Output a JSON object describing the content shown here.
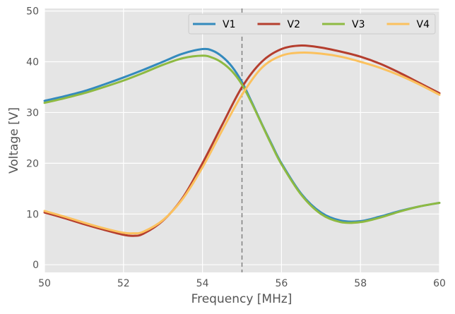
{
  "chart_data": {
    "type": "line",
    "xlabel": "Frequency [MHz]",
    "ylabel": "Voltage [V]",
    "xlim": [
      50,
      60
    ],
    "ylim": [
      -1.5,
      50.5
    ],
    "xticks": [
      50,
      52,
      54,
      56,
      58,
      60
    ],
    "yticks": [
      0,
      10,
      20,
      30,
      40,
      50
    ],
    "grid": true,
    "legend_position": "top-right",
    "vline": {
      "x": 55.0,
      "style": "dashed",
      "color": "#808080"
    },
    "series": [
      {
        "name": "V1",
        "color": "#348ABD",
        "x": [
          50,
          50.5,
          51,
          51.5,
          52,
          52.5,
          53,
          53.5,
          54,
          54.25,
          54.5,
          54.75,
          55,
          55.25,
          55.5,
          55.75,
          56,
          56.5,
          57,
          57.5,
          58,
          58.5,
          59,
          59.5,
          60
        ],
        "y": [
          32.3,
          33.2,
          34.2,
          35.5,
          36.9,
          38.4,
          40.0,
          41.6,
          42.5,
          42.2,
          41.0,
          39.0,
          36.0,
          32.0,
          27.8,
          23.8,
          20.0,
          14.0,
          10.3,
          8.7,
          8.6,
          9.5,
          10.6,
          11.5,
          12.2
        ]
      },
      {
        "name": "V2",
        "color": "#B53E2E",
        "x": [
          50,
          50.5,
          51,
          51.5,
          52,
          52.25,
          52.5,
          53,
          53.5,
          54,
          54.5,
          55,
          55.5,
          56,
          56.5,
          57,
          57.5,
          58,
          58.5,
          59,
          59.5,
          60
        ],
        "y": [
          10.3,
          9.2,
          8.0,
          6.9,
          5.9,
          5.7,
          6.1,
          8.7,
          13.2,
          20.0,
          27.6,
          35.0,
          40.0,
          42.5,
          43.2,
          42.8,
          42.0,
          41.0,
          39.6,
          37.8,
          35.8,
          33.8
        ]
      },
      {
        "name": "V3",
        "color": "#8EBA42",
        "x": [
          50,
          50.5,
          51,
          51.5,
          52,
          52.5,
          53,
          53.5,
          54,
          54.25,
          54.5,
          54.75,
          55,
          55.25,
          55.5,
          55.75,
          56,
          56.5,
          57,
          57.5,
          58,
          58.5,
          59,
          59.5,
          60
        ],
        "y": [
          31.9,
          32.8,
          33.8,
          35.0,
          36.3,
          37.8,
          39.4,
          40.7,
          41.2,
          40.8,
          39.8,
          38.1,
          35.5,
          31.8,
          27.7,
          23.6,
          19.8,
          13.8,
          10.0,
          8.4,
          8.4,
          9.3,
          10.5,
          11.5,
          12.2
        ]
      },
      {
        "name": "V4",
        "color": "#FBC15E",
        "x": [
          50,
          50.5,
          51,
          51.5,
          52,
          52.25,
          52.5,
          53,
          53.5,
          54,
          54.5,
          55,
          55.5,
          56,
          56.5,
          57,
          57.5,
          58,
          58.5,
          59,
          59.5,
          60
        ],
        "y": [
          10.6,
          9.5,
          8.3,
          7.2,
          6.3,
          6.2,
          6.5,
          8.8,
          13.0,
          19.2,
          26.5,
          33.5,
          38.8,
          41.2,
          41.8,
          41.6,
          41.0,
          40.0,
          38.8,
          37.3,
          35.5,
          33.5
        ]
      }
    ]
  }
}
